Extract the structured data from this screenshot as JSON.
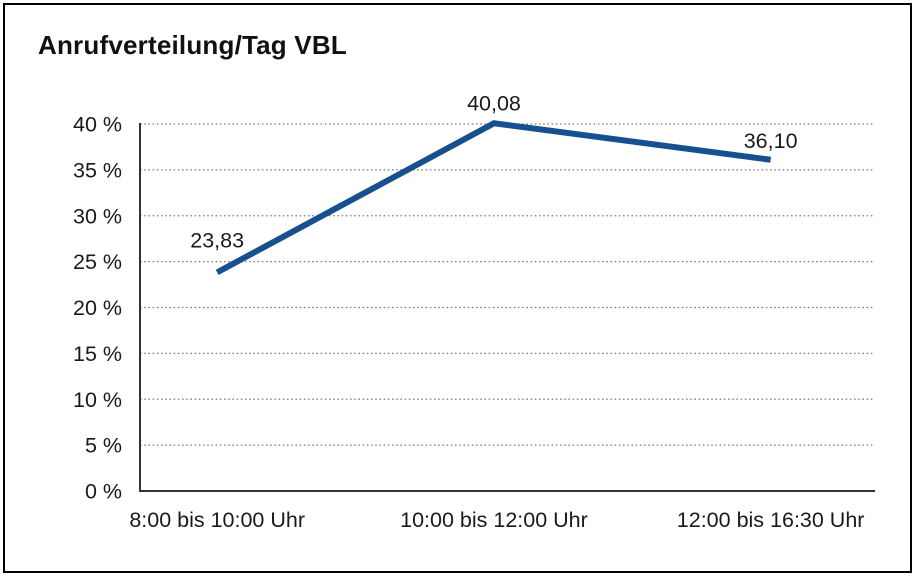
{
  "chart_data": {
    "type": "line",
    "title": "Anrufverteilung/Tag VBL",
    "categories": [
      "8:00 bis 10:00 Uhr",
      "10:00 bis 12:00 Uhr",
      "12:00 bis 16:30 Uhr"
    ],
    "values": [
      23.83,
      40.08,
      36.1
    ],
    "value_labels": [
      "23,83",
      "40,08",
      "36,10"
    ],
    "xlabel": "",
    "ylabel": "",
    "ylim": [
      0,
      40
    ],
    "ytick_step": 5,
    "ytick_labels": [
      "0 %",
      "5 %",
      "10 %",
      "15 %",
      "20 %",
      "25 %",
      "30 %",
      "35 %",
      "40 %"
    ],
    "grid": "horizontal-dotted",
    "legend": "none",
    "colors": {
      "line": "#17508f",
      "grid": "#7d7d7d",
      "axis": "#333333",
      "text": "#1a1a1a",
      "border": "#000000",
      "background": "#ffffff"
    }
  }
}
